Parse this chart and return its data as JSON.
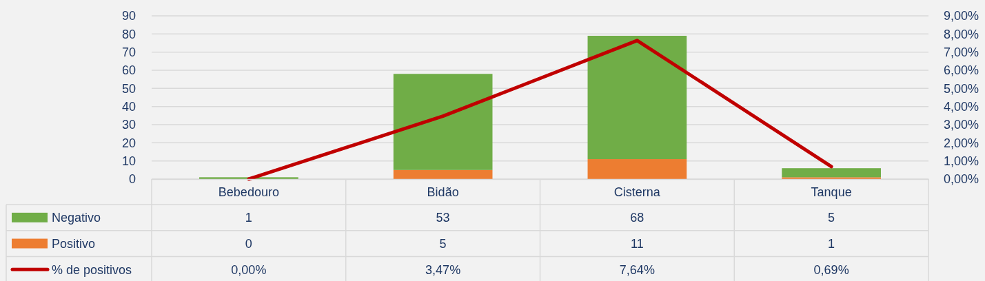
{
  "chart_data": {
    "type": "bar",
    "stacked": true,
    "categories": [
      "Bebedouro",
      "Bidão",
      "Cisterna",
      "Tanque"
    ],
    "series": [
      {
        "name": "Positivo",
        "color": "#ed7d31",
        "values": [
          0,
          5,
          11,
          1
        ],
        "value_labels": [
          "0",
          "5",
          "11",
          "1"
        ]
      },
      {
        "name": "Negativo",
        "color": "#70ad47",
        "values": [
          1,
          53,
          68,
          5
        ],
        "value_labels": [
          "1",
          "53",
          "68",
          "5"
        ]
      },
      {
        "name": "% de positivos",
        "type": "line",
        "axis": "y2",
        "color": "#c00000",
        "values": [
          0,
          3.47,
          7.64,
          0.69
        ],
        "value_labels": [
          "0,00%",
          "3,47%",
          "7,64%",
          "0,69%"
        ]
      }
    ],
    "ylim": [
      0,
      90
    ],
    "yticks": [
      0,
      10,
      20,
      30,
      40,
      50,
      60,
      70,
      80,
      90
    ],
    "y2lim": [
      0,
      9
    ],
    "y2ticks": [
      {
        "value": 0,
        "label": "0,00%"
      },
      {
        "value": 1,
        "label": "1,00%"
      },
      {
        "value": 2,
        "label": "2,00%"
      },
      {
        "value": 3,
        "label": "3,00%"
      },
      {
        "value": 4,
        "label": "4,00%"
      },
      {
        "value": 5,
        "label": "5,00%"
      },
      {
        "value": 6,
        "label": "6,00%"
      },
      {
        "value": 7,
        "label": "7,00%"
      },
      {
        "value": 8,
        "label": "8,00%"
      },
      {
        "value": 9,
        "label": "9,00%"
      }
    ],
    "grid": "y",
    "legend": "bottom",
    "line_style": "solid"
  }
}
